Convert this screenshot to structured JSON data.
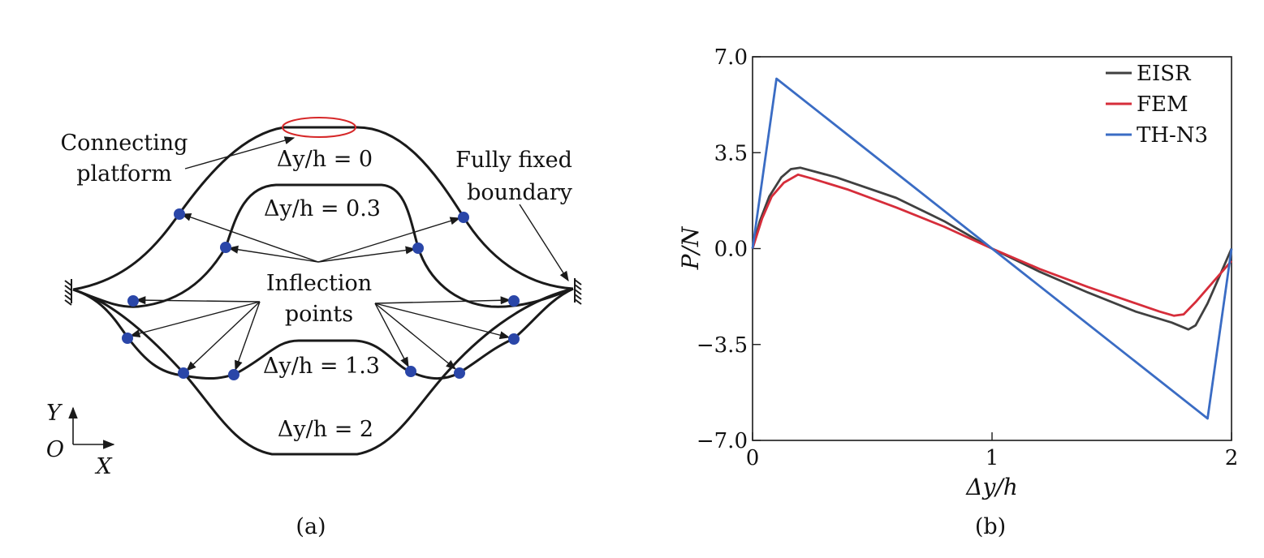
{
  "panel_a": {
    "caption": "(a)",
    "labels": {
      "connecting_platform_line1": "Connecting",
      "connecting_platform_line2": "platform",
      "fully_fixed_line1": "Fully fixed",
      "fully_fixed_line2": "boundary",
      "inflection_line1": "Inflection",
      "inflection_line2": "points"
    },
    "curves": [
      {
        "name": "dy0",
        "label": "Δy/h = 0"
      },
      {
        "name": "dy03",
        "label": "Δy/h = 0.3"
      },
      {
        "name": "dy13",
        "label": "Δy/h = 1.3"
      },
      {
        "name": "dy2",
        "label": "Δy/h = 2"
      }
    ],
    "axes": {
      "y": "Y",
      "origin": "O",
      "x": "X"
    },
    "colors": {
      "curve": "#1a1a1a",
      "point": "#2a46a8",
      "platform_ellipse": "#d62728"
    }
  },
  "chart_data": {
    "type": "line",
    "caption": "(b)",
    "xlabel": "Δy/h",
    "ylabel": "P/N",
    "xlim": [
      0,
      2
    ],
    "ylim": [
      -7.0,
      7.0
    ],
    "xticks": [
      0,
      1,
      2
    ],
    "xtick_labels": [
      "0",
      "1",
      "2"
    ],
    "yticks": [
      7.0,
      3.5,
      0.0,
      -3.5,
      -7.0
    ],
    "ytick_labels": [
      "7.0",
      "3.5",
      "0.0",
      "−3.5",
      "−7.0"
    ],
    "legend_position": "top-right",
    "series": [
      {
        "name": "EISR",
        "color": "#404040",
        "x": [
          0,
          0.03,
          0.07,
          0.12,
          0.16,
          0.2,
          0.35,
          0.6,
          0.8,
          1.0,
          1.2,
          1.4,
          1.6,
          1.75,
          1.82,
          1.85,
          1.9,
          1.95,
          2.0
        ],
        "y": [
          0,
          1.0,
          1.9,
          2.6,
          2.9,
          2.95,
          2.6,
          1.85,
          1.0,
          0.0,
          -0.85,
          -1.6,
          -2.3,
          -2.7,
          -2.95,
          -2.8,
          -2.0,
          -1.0,
          0.0
        ]
      },
      {
        "name": "FEM",
        "color": "#d62d3a",
        "x": [
          0,
          0.04,
          0.08,
          0.13,
          0.19,
          0.25,
          0.4,
          0.6,
          0.8,
          1.0,
          1.2,
          1.4,
          1.6,
          1.7,
          1.76,
          1.8,
          1.85,
          1.92,
          2.0
        ],
        "y": [
          0,
          1.1,
          1.9,
          2.4,
          2.7,
          2.55,
          2.15,
          1.5,
          0.8,
          0.0,
          -0.75,
          -1.4,
          -2.0,
          -2.3,
          -2.45,
          -2.4,
          -1.95,
          -1.25,
          -0.45
        ]
      },
      {
        "name": "TH-N3",
        "color": "#3a6cc4",
        "x": [
          0,
          0.1,
          1.0,
          1.9,
          2.0
        ],
        "y": [
          0,
          6.2,
          0.0,
          -6.2,
          0.0
        ]
      }
    ]
  }
}
